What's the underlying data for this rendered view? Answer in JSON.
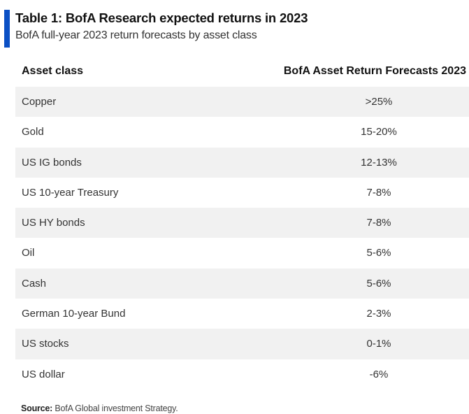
{
  "title": "Table 1: BofA Research expected returns in 2023",
  "subtitle": "BofA full-year 2023 return forecasts by asset class",
  "accent_color": "#0a4fc4",
  "table": {
    "headers": {
      "asset": "Asset class",
      "forecast": "BofA Asset Return Forecasts 2023"
    },
    "rows": [
      {
        "asset": "Copper",
        "value": ">25%"
      },
      {
        "asset": "Gold",
        "value": "15-20%"
      },
      {
        "asset": "US IG bonds",
        "value": "12-13%"
      },
      {
        "asset": "US 10-year Treasury",
        "value": "7-8%"
      },
      {
        "asset": "US HY bonds",
        "value": "7-8%"
      },
      {
        "asset": "Oil",
        "value": "5-6%"
      },
      {
        "asset": "Cash",
        "value": "5-6%"
      },
      {
        "asset": "German 10-year Bund",
        "value": "2-3%"
      },
      {
        "asset": "US stocks",
        "value": "0-1%"
      },
      {
        "asset": "US dollar",
        "value": "-6%"
      }
    ]
  },
  "source": {
    "label": "Source:",
    "text": "BofA Global investment Strategy."
  }
}
